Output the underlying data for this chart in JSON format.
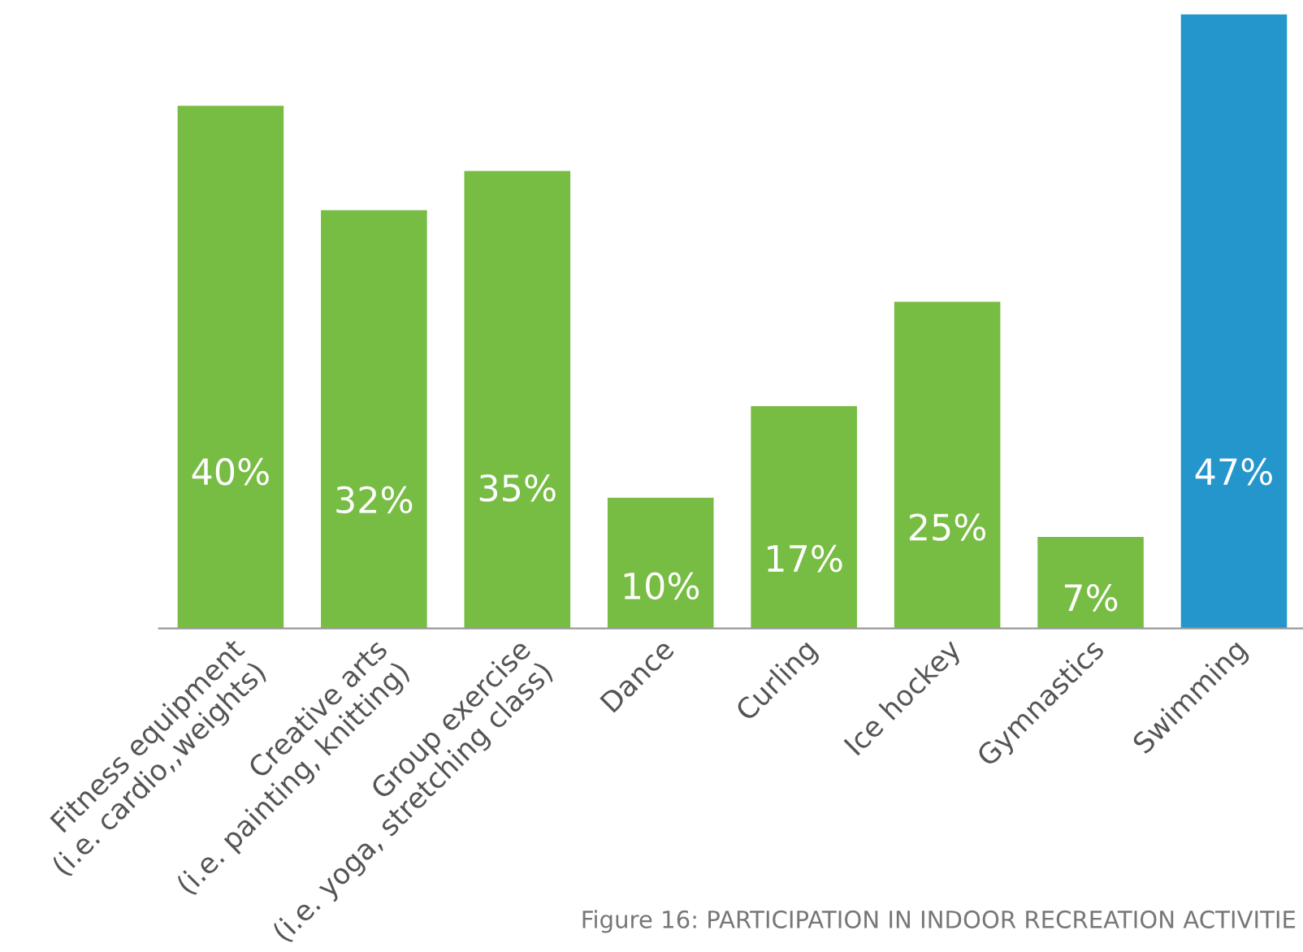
{
  "chart_data": {
    "type": "bar",
    "categories": [
      "Fitness equipment\n(i.e. cardio,,weights)",
      "Creative arts\n(i.e. painting, knitting)",
      "Group exercise\n(i.e. yoga, stretching class)",
      "Dance",
      "Curling",
      "Ice hockey",
      "Gymnastics",
      "Swimming"
    ],
    "values": [
      40,
      32,
      35,
      10,
      17,
      25,
      7,
      47
    ],
    "colors": [
      "#77bc43",
      "#77bc43",
      "#77bc43",
      "#77bc43",
      "#77bc43",
      "#77bc43",
      "#77bc43",
      "#2596cc"
    ],
    "value_labels": [
      "40%",
      "32%",
      "35%",
      "10%",
      "17%",
      "25%",
      "7%",
      "47%"
    ],
    "grid": false,
    "legend": false,
    "tick_labels": "x",
    "annotations": [
      "Figure 16: PARTICIPATION IN INDOOR RECREATION ACTIVITIE"
    ]
  }
}
